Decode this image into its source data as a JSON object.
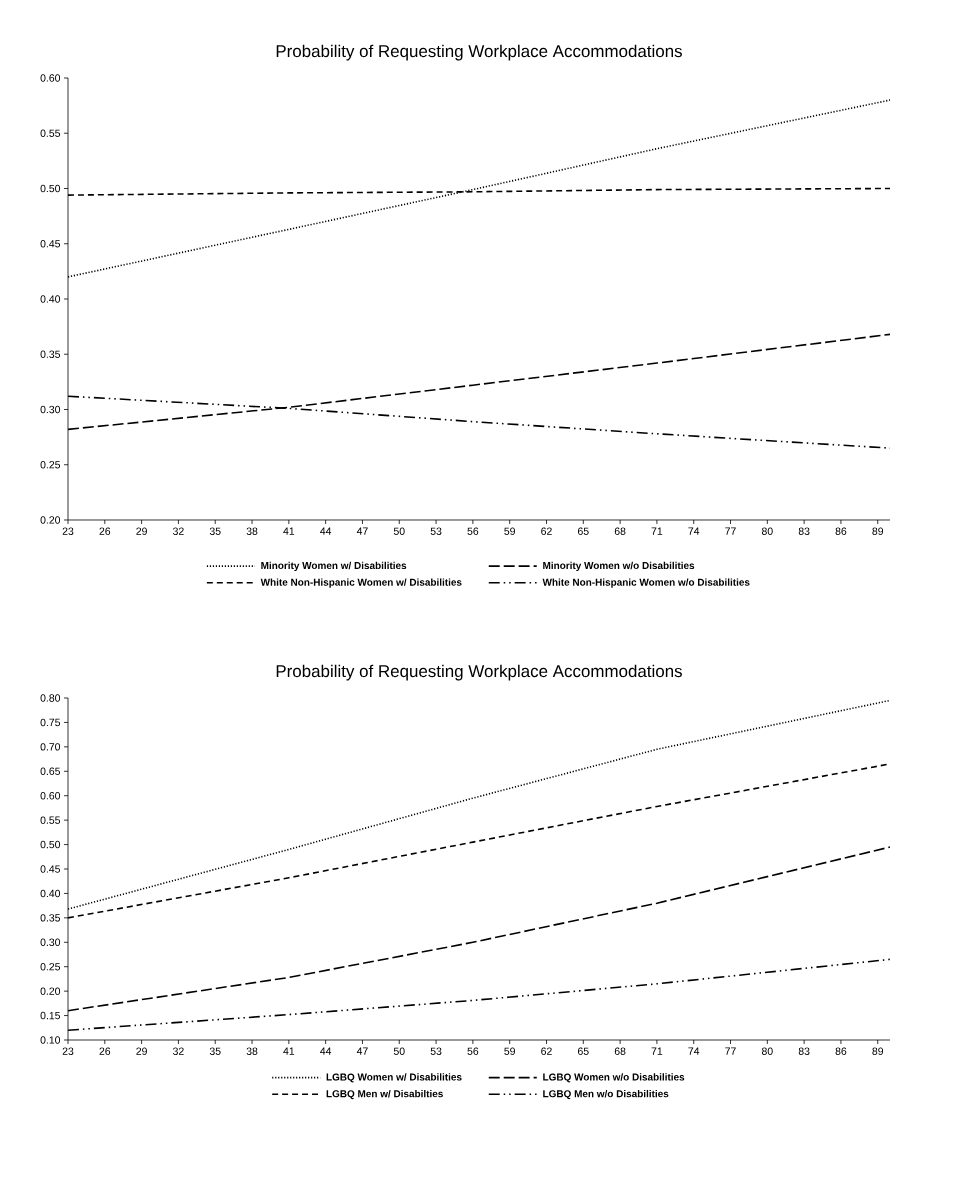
{
  "chart_data": [
    {
      "type": "line",
      "title": "Probability of Requesting Workplace Accommodations",
      "x": [
        23,
        41,
        56,
        71,
        90
      ],
      "xlim": [
        23,
        90
      ],
      "xticks": [
        23,
        26,
        29,
        32,
        35,
        38,
        41,
        44,
        47,
        50,
        53,
        56,
        59,
        62,
        65,
        68,
        71,
        74,
        77,
        80,
        83,
        86,
        89
      ],
      "ylim": [
        0.2,
        0.6
      ],
      "yticks": [
        {
          "value": 0.2,
          "label": "0.20"
        },
        {
          "value": 0.25,
          "label": "0.25"
        },
        {
          "value": 0.3,
          "label": "0.30"
        },
        {
          "value": 0.35,
          "label": "0.35"
        },
        {
          "value": 0.4,
          "label": "0.40"
        },
        {
          "value": 0.45,
          "label": "0.45"
        },
        {
          "value": 0.5,
          "label": "0.50"
        },
        {
          "value": 0.55,
          "label": "0.55"
        },
        {
          "value": 0.6,
          "label": "0.60"
        }
      ],
      "legend": "bottom",
      "series": [
        {
          "name": "Minority Women w/ Disabilities",
          "color": "#000000",
          "line_style": "dotted",
          "values": [
            0.42,
            0.463,
            0.499,
            0.536,
            0.58
          ]
        },
        {
          "name": "Minority Women w/o Disabilities",
          "color": "#000000",
          "line_style": "long dashed",
          "values": [
            0.282,
            0.302,
            0.322,
            0.342,
            0.368
          ]
        },
        {
          "name": "White Non-Hispanic Women w/ Disabilities",
          "color": "#000000",
          "line_style": "dashed",
          "values": [
            0.494,
            0.496,
            0.497,
            0.499,
            0.5
          ]
        },
        {
          "name": "White Non-Hispanic Women w/o Disabilities",
          "color": "#000000",
          "line_style": "dash dot dot",
          "values": [
            0.312,
            0.301,
            0.289,
            0.278,
            0.265
          ]
        }
      ]
    },
    {
      "type": "line",
      "title": "Probability of Requesting Workplace Accommodations",
      "x": [
        23,
        41,
        56,
        71,
        90
      ],
      "xlim": [
        23,
        90
      ],
      "xticks": [
        23,
        26,
        29,
        32,
        35,
        38,
        41,
        44,
        47,
        50,
        53,
        56,
        59,
        62,
        65,
        68,
        71,
        74,
        77,
        80,
        83,
        86,
        89
      ],
      "ylim": [
        0.1,
        0.8
      ],
      "yticks": [
        {
          "value": 0.1,
          "label": "0.10"
        },
        {
          "value": 0.15,
          "label": "0.15"
        },
        {
          "value": 0.2,
          "label": "0.20"
        },
        {
          "value": 0.25,
          "label": "0.25"
        },
        {
          "value": 0.3,
          "label": "0.30"
        },
        {
          "value": 0.35,
          "label": "0.35"
        },
        {
          "value": 0.4,
          "label": "0.40"
        },
        {
          "value": 0.45,
          "label": "0.45"
        },
        {
          "value": 0.5,
          "label": "0.50"
        },
        {
          "value": 0.55,
          "label": "0.55"
        },
        {
          "value": 0.6,
          "label": "0.60"
        },
        {
          "value": 0.65,
          "label": "0.65"
        },
        {
          "value": 0.7,
          "label": "0.70"
        },
        {
          "value": 0.75,
          "label": "0.75"
        },
        {
          "value": 0.8,
          "label": "0.80"
        }
      ],
      "legend": "bottom",
      "series": [
        {
          "name": "LGBQ Women w/ Disabilities",
          "color": "#000000",
          "line_style": "dotted",
          "values": [
            0.368,
            0.49,
            0.595,
            0.695,
            0.795
          ]
        },
        {
          "name": "LGBQ Women w/o Disabilities",
          "color": "#000000",
          "line_style": "long dashed",
          "values": [
            0.16,
            0.228,
            0.3,
            0.38,
            0.495
          ]
        },
        {
          "name": "LGBQ Men w/ Disabilties",
          "color": "#000000",
          "line_style": "dashed",
          "values": [
            0.35,
            0.432,
            0.505,
            0.578,
            0.665
          ]
        },
        {
          "name": "LGBQ Men w/o Disabilities",
          "color": "#000000",
          "line_style": "dash dot dot",
          "values": [
            0.12,
            0.152,
            0.181,
            0.215,
            0.265
          ]
        }
      ]
    }
  ]
}
